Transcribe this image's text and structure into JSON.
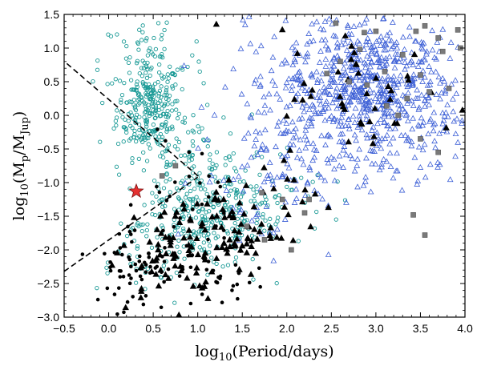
{
  "chart_data": {
    "type": "scatter",
    "title": "",
    "xlabel": {
      "prefix": "log",
      "base": "10",
      "body": "(Period/days)"
    },
    "ylabel": {
      "prefix": "log",
      "base": "10",
      "body1": "(M",
      "sub1": "p",
      "body2": "/M",
      "sub2": "Jup",
      "body3": ")"
    },
    "xlim": [
      -0.5,
      4.0
    ],
    "ylim": [
      -3.0,
      1.5
    ],
    "xticks": [
      "−0.5",
      "0.0",
      "0.5",
      "1.0",
      "1.5",
      "2.0",
      "2.5",
      "3.0",
      "3.5",
      "4.0"
    ],
    "yticks": [
      "−3.0",
      "−2.5",
      "−2.0",
      "−1.5",
      "−1.0",
      "−0.5",
      "0.0",
      "0.5",
      "1.0",
      "1.5"
    ],
    "grid": false,
    "legend": "none",
    "colors": {
      "cyan_circles": "#1a9a96",
      "blue_triangles": "#3c5fd6",
      "black_triangles": "#000000",
      "black_dots": "#000000",
      "gray_squares": "#7a7a7a",
      "star": "#e53030",
      "dashed_lines": "#000000"
    },
    "series": [
      {
        "marker": "open-circle",
        "color": "cyan",
        "clusters": [
          {
            "cx": 0.45,
            "cy": 0.1,
            "sx": 0.18,
            "sy": 0.35,
            "n": 260
          },
          {
            "cx": 1.1,
            "cy": -1.6,
            "sx": 0.35,
            "sy": 0.35,
            "n": 200
          },
          {
            "cx": 0.9,
            "cy": -0.8,
            "sx": 0.35,
            "sy": 0.4,
            "n": 120
          },
          {
            "cx": 0.5,
            "cy": 0.8,
            "sx": 0.3,
            "sy": 0.35,
            "n": 60
          },
          {
            "cx": 1.7,
            "cy": -1.3,
            "sx": 0.4,
            "sy": 0.4,
            "n": 80
          },
          {
            "cx": 0.3,
            "cy": -2.0,
            "sx": 0.3,
            "sy": 0.3,
            "n": 40
          }
        ]
      },
      {
        "marker": "open-triangle",
        "color": "blue",
        "clusters": [
          {
            "cx": 3.0,
            "cy": 0.35,
            "sx": 0.45,
            "sy": 0.45,
            "n": 520
          },
          {
            "cx": 2.2,
            "cy": 0.1,
            "sx": 0.45,
            "sy": 0.5,
            "n": 160
          },
          {
            "cx": 1.8,
            "cy": -1.0,
            "sx": 0.4,
            "sy": 0.5,
            "n": 70
          },
          {
            "cx": 3.2,
            "cy": -0.6,
            "sx": 0.5,
            "sy": 0.4,
            "n": 60
          },
          {
            "cx": 2.8,
            "cy": 1.1,
            "sx": 0.5,
            "sy": 0.2,
            "n": 60
          }
        ]
      },
      {
        "marker": "filled-triangle",
        "color": "black",
        "clusters": [
          {
            "cx": 1.2,
            "cy": -1.7,
            "sx": 0.35,
            "sy": 0.35,
            "n": 90
          },
          {
            "cx": 0.7,
            "cy": -2.2,
            "sx": 0.3,
            "sy": 0.3,
            "n": 40
          },
          {
            "cx": 2.9,
            "cy": 0.2,
            "sx": 0.5,
            "sy": 0.55,
            "n": 45
          },
          {
            "cx": 2.0,
            "cy": -1.2,
            "sx": 0.3,
            "sy": 0.4,
            "n": 15
          }
        ]
      },
      {
        "marker": "filled-circle",
        "color": "black",
        "clusters": [
          {
            "cx": 0.4,
            "cy": -2.2,
            "sx": 0.3,
            "sy": 0.35,
            "n": 70
          },
          {
            "cx": 0.9,
            "cy": -1.3,
            "sx": 0.25,
            "sy": 0.5,
            "n": 25
          },
          {
            "cx": 1.3,
            "cy": -2.4,
            "sx": 0.3,
            "sy": 0.25,
            "n": 20
          }
        ]
      },
      {
        "marker": "filled-square",
        "color": "gray",
        "points": [
          [
            2.55,
            1.37
          ],
          [
            2.87,
            1.23
          ],
          [
            3.0,
            1.25
          ],
          [
            3.45,
            1.25
          ],
          [
            3.55,
            1.33
          ],
          [
            3.7,
            1.15
          ],
          [
            3.92,
            1.27
          ],
          [
            2.82,
            0.98
          ],
          [
            3.3,
            0.9
          ],
          [
            3.75,
            0.95
          ],
          [
            3.95,
            1.0
          ],
          [
            3.1,
            0.65
          ],
          [
            3.5,
            0.6
          ],
          [
            2.9,
            0.45
          ],
          [
            3.35,
            0.25
          ],
          [
            3.6,
            0.35
          ],
          [
            3.82,
            0.4
          ],
          [
            3.25,
            0.0
          ],
          [
            3.5,
            -0.35
          ],
          [
            3.7,
            -0.55
          ],
          [
            2.6,
            0.8
          ],
          [
            2.45,
            0.62
          ],
          [
            1.72,
            -1.15
          ],
          [
            1.95,
            -1.25
          ],
          [
            2.2,
            -1.45
          ],
          [
            3.42,
            -1.48
          ],
          [
            3.55,
            -1.78
          ],
          [
            1.55,
            -1.65
          ],
          [
            1.75,
            -1.85
          ],
          [
            2.05,
            -2.0
          ],
          [
            0.75,
            -0.75
          ],
          [
            2.25,
            -1.25
          ],
          [
            0.6,
            -0.9
          ],
          [
            3.12,
            0.14
          ],
          [
            2.7,
            0.5
          ]
        ]
      },
      {
        "marker": "star",
        "color": "red",
        "points": [
          [
            0.31,
            -1.13
          ]
        ]
      }
    ],
    "lines": [
      {
        "style": "dashed",
        "points": [
          [
            -0.47,
            0.77
          ],
          [
            1.02,
            -0.92
          ]
        ]
      },
      {
        "style": "dashed",
        "points": [
          [
            -0.5,
            -2.32
          ],
          [
            1.0,
            -0.92
          ]
        ]
      }
    ]
  }
}
